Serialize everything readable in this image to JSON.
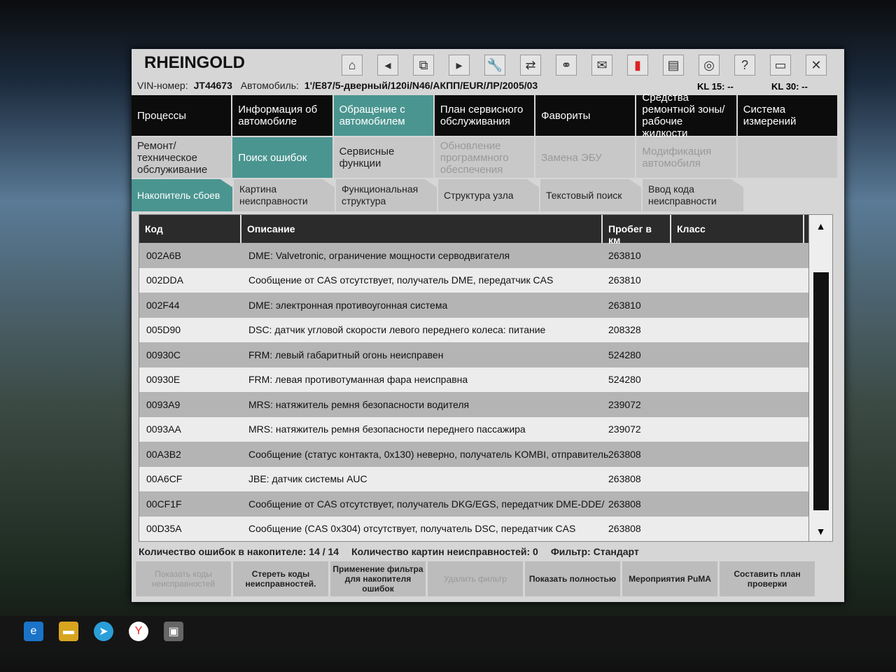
{
  "app": {
    "title": "RHEINGOLD"
  },
  "toolbar": {
    "icons": [
      "home-icon",
      "back-icon",
      "copy-icon",
      "forward-icon",
      "wrench-icon",
      "connect-icon",
      "link-icon",
      "mail-icon",
      "battery-icon",
      "print-icon",
      "air-icon",
      "help-icon",
      "minimize-icon",
      "close-icon"
    ]
  },
  "vehicle": {
    "vin_label": "VIN-номер:",
    "vin": "JT44673",
    "car_label": "Автомобиль:",
    "car": "1'/E87/5-дверный/120i/N46/АКПП/EUR/ЛР/2005/03",
    "kl15_label": "KL 15:",
    "kl15": "--",
    "kl30_label": "KL 30:",
    "kl30": "--"
  },
  "nav1": [
    "Процессы",
    "Информация об автомобиле",
    "Обращение с автомобилем",
    "План сервисного обслуживания",
    "Фавориты",
    "Средства ремонтной зоны/ рабочие жидкости",
    "Система измерений"
  ],
  "nav2": [
    "Ремонт/ техническое обслуживание",
    "Поиск ошибок",
    "Сервисные функции",
    "Обновление программного обеспечения",
    "Замена ЭБУ",
    "Модификация автомобиля",
    ""
  ],
  "nav3": [
    "Накопитель сбоев",
    "Картина неисправности",
    "Функциональная структура",
    "Структура узла",
    "Текстовый поиск",
    "Ввод кода неисправности"
  ],
  "table": {
    "headers": [
      "Код",
      "Описание",
      "Пробег в км",
      "Класс"
    ],
    "rows": [
      [
        "002A6B",
        "DME: Valvetronic, ограничение мощности серводвигателя",
        "263810",
        ""
      ],
      [
        "002DDA",
        "Сообщение от CAS отсутствует, получатель DME, передатчик CAS",
        "263810",
        ""
      ],
      [
        "002F44",
        "DME: электронная противоугонная система",
        "263810",
        ""
      ],
      [
        "005D90",
        "DSC: датчик угловой скорости левого переднего колеса: питание",
        "208328",
        ""
      ],
      [
        "00930C",
        "FRM: левый габаритный огонь неисправен",
        "524280",
        ""
      ],
      [
        "00930E",
        "FRM: левая противотуманная фара неисправна",
        "524280",
        ""
      ],
      [
        "0093A9",
        "MRS: натяжитель ремня безопасности водителя",
        "239072",
        ""
      ],
      [
        "0093AA",
        "MRS: натяжитель ремня безопасности переднего пассажира",
        "239072",
        ""
      ],
      [
        "00A3B2",
        "Сообщение (статус контакта, 0x130) неверно, получатель KOMBI, отправитель",
        "263808",
        ""
      ],
      [
        "00A6CF",
        "JBE: датчик системы AUC",
        "263808",
        ""
      ],
      [
        "00CF1F",
        "Сообщение от CAS отсутствует, получатель DKG/EGS, передатчик DME-DDE/",
        "263808",
        ""
      ],
      [
        "00D35A",
        "Сообщение (CAS 0x304) отсутствует, получатель DSC, передатчик CAS",
        "263808",
        ""
      ]
    ]
  },
  "status": {
    "count_label": "Количество ошибок в накопителе:",
    "count": "14 / 14",
    "pics_label": "Количество картин неисправностей:",
    "pics": "0",
    "filter_label": "Фильтр:",
    "filter": "Стандарт"
  },
  "buttons": [
    "Показать коды неисправностей",
    "Стереть коды неисправностей.",
    "Применение фильтра для накопителя ошибок",
    "Удалить фильтр",
    "Показать полностью",
    "Мероприятия PuMA",
    "Составить план проверки"
  ],
  "accent": "#4a9590"
}
